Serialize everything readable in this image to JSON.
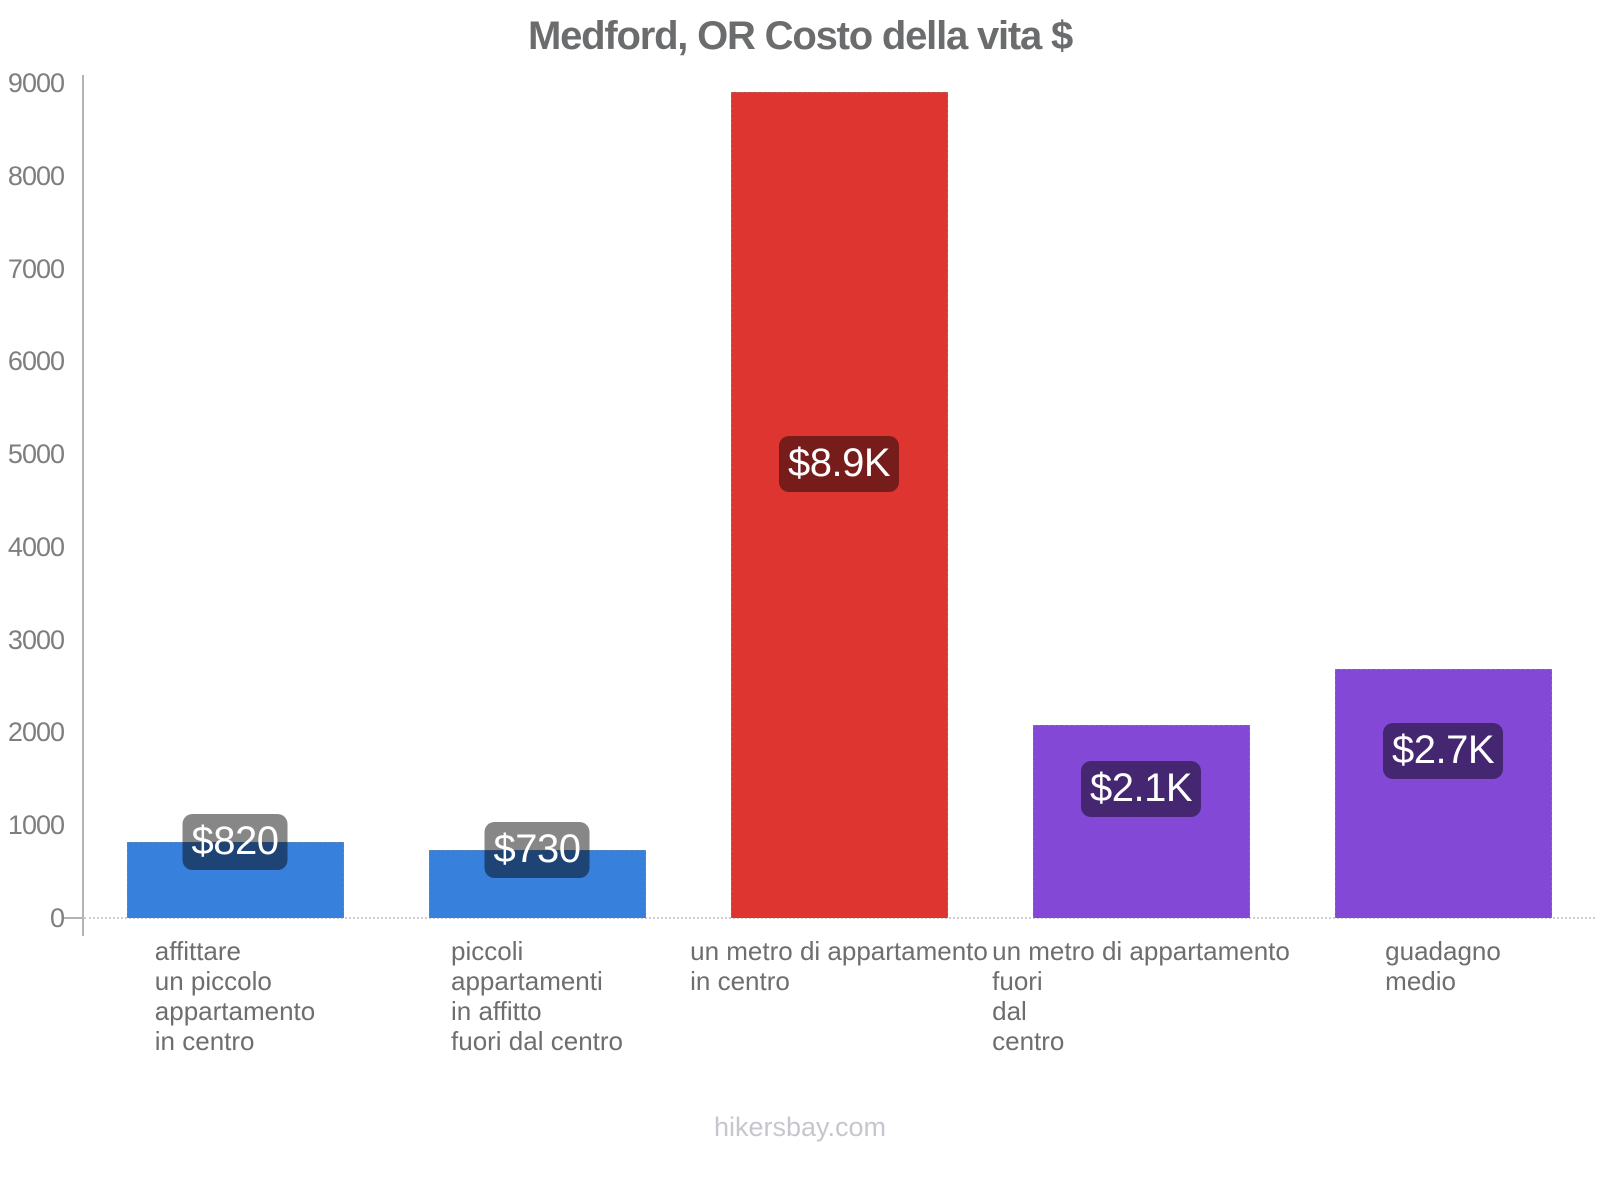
{
  "chart_data": {
    "type": "bar",
    "title": "Medford, OR Costo della vita $",
    "categories": [
      [
        "affittare",
        "un piccolo",
        "appartamento",
        "in centro"
      ],
      [
        "piccoli",
        "appartamenti",
        "in affitto",
        "fuori dal centro"
      ],
      [
        "un metro di appartamento",
        "in centro"
      ],
      [
        "un metro di appartamento",
        "fuori",
        "dal",
        "centro"
      ],
      [
        "guadagno",
        "medio"
      ]
    ],
    "values": [
      820,
      730,
      8900,
      2080,
      2680
    ],
    "value_labels": [
      "$820",
      "$730",
      "$8.9K",
      "$2.1K",
      "$2.7K"
    ],
    "bar_colors": [
      "#3781dc",
      "#3781dc",
      "#df3531",
      "#8349d6",
      "#8349d6"
    ],
    "xlabel": "",
    "ylabel": "",
    "ylim": [
      0,
      9000
    ],
    "yticks": [
      0,
      1000,
      2000,
      3000,
      4000,
      5000,
      6000,
      7000,
      8000,
      9000
    ],
    "grid": false,
    "legend": false,
    "currency": "$"
  },
  "footer": {
    "watermark": "hikersbay.com"
  },
  "colors": {
    "title_text": "#6b6c6e",
    "axis_line": "#b4b4b4",
    "tick_label": "#7e7e7e",
    "category_label": "#6e6e6e",
    "baseline_dotted": "#cfcfcf",
    "badge_bg": "rgba(0,0,0,0.47)",
    "badge_text": "#ffffff",
    "watermark_text": "#c6c6cf"
  }
}
